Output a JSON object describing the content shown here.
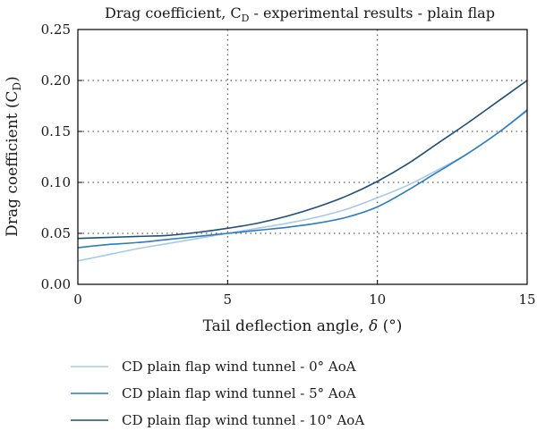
{
  "chart_data": {
    "type": "line",
    "title": "Drag coefficient, C",
    "title_sub": "D",
    "title_rest": " - experimental results - plain flap",
    "xlabel": "Tail deflection angle, ",
    "xlabel_symbol": "δ",
    "xlabel_unit": " (°)",
    "ylabel": "Drag coefficient (C",
    "ylabel_sub": "D",
    "ylabel_end": ")",
    "xlim": [
      0,
      15
    ],
    "ylim": [
      0,
      0.25
    ],
    "xticks": [
      0,
      5,
      10,
      15
    ],
    "xtick_labels": [
      "0",
      "5",
      "10",
      "15"
    ],
    "yticks": [
      0,
      0.05,
      0.1,
      0.15,
      0.2,
      0.25
    ],
    "ytick_labels": [
      "0.00",
      "0.05",
      "0.10",
      "0.15",
      "0.20",
      "0.25"
    ],
    "grid": "dotted",
    "legend_position": "bottom",
    "series": [
      {
        "name": "CD plain flap wind tunnel - 0° AoA",
        "color": "#a8c8e8",
        "x": [
          0,
          1,
          2,
          3,
          4,
          5,
          6,
          7,
          8,
          9,
          10,
          11,
          12,
          13,
          14,
          15
        ],
        "y": [
          0.023,
          0.029,
          0.035,
          0.04,
          0.045,
          0.05,
          0.055,
          0.06,
          0.066,
          0.074,
          0.085,
          0.097,
          0.112,
          0.128,
          0.148,
          0.17
        ]
      },
      {
        "name": "CD plain flap wind tunnel - 5° AoA",
        "color": "#2a7dc0",
        "x": [
          0,
          1,
          2,
          3,
          4,
          5,
          6,
          7,
          8,
          9,
          10,
          11,
          12,
          13,
          14,
          15
        ],
        "y": [
          0.036,
          0.039,
          0.041,
          0.044,
          0.047,
          0.05,
          0.053,
          0.056,
          0.06,
          0.066,
          0.076,
          0.092,
          0.11,
          0.128,
          0.148,
          0.171
        ]
      },
      {
        "name": "CD plain flap wind tunnel - 10° AoA",
        "color": "#1f4e79",
        "x": [
          0,
          1,
          2,
          3,
          4,
          5,
          6,
          7,
          8,
          9,
          10,
          11,
          12,
          13,
          14,
          15
        ],
        "y": [
          0.045,
          0.046,
          0.047,
          0.048,
          0.051,
          0.055,
          0.06,
          0.067,
          0.076,
          0.087,
          0.101,
          0.118,
          0.138,
          0.158,
          0.179,
          0.2
        ]
      }
    ]
  }
}
